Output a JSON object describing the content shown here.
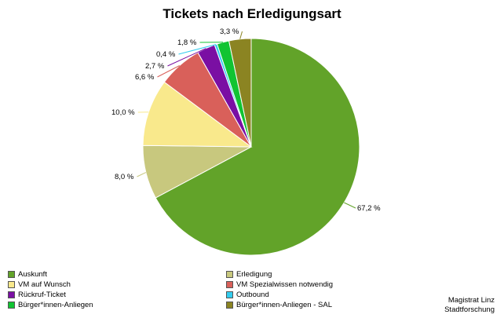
{
  "chart_data": {
    "type": "pie",
    "title": "Tickets nach Erledigungsart",
    "start_angle_deg": 0,
    "direction": "clockwise",
    "legend_placement": "bottom",
    "slices": [
      {
        "name": "Auskunft",
        "value": 67.2,
        "label": "67,2 %",
        "color": "#62a329"
      },
      {
        "name": "Erledigung",
        "value": 8.0,
        "label": "8,0 %",
        "color": "#c8c87e"
      },
      {
        "name": "VM auf Wunsch",
        "value": 10.0,
        "label": "10,0 %",
        "color": "#f9e98c"
      },
      {
        "name": "VM Spezialwissen notwendig",
        "value": 6.6,
        "label": "6,6 %",
        "color": "#d9605a"
      },
      {
        "name": "Rückruf-Ticket",
        "value": 2.7,
        "label": "2,7 %",
        "color": "#7a0fa3"
      },
      {
        "name": "Outbound",
        "value": 0.4,
        "label": "0,4 %",
        "color": "#33ccee"
      },
      {
        "name": "Bürger*innen-Anliegen",
        "value": 1.8,
        "label": "1,8 %",
        "color": "#11c432"
      },
      {
        "name": "Bürger*innen-Anliegen - SAL",
        "value": 3.3,
        "label": "3,3 %",
        "color": "#8b8422"
      }
    ]
  },
  "legend": {
    "items": [
      {
        "label": "Auskunft",
        "color": "#62a329"
      },
      {
        "label": "Erledigung",
        "color": "#c8c87e"
      },
      {
        "label": "VM auf Wunsch",
        "color": "#f9e98c"
      },
      {
        "label": "VM Spezialwissen notwendig",
        "color": "#d9605a"
      },
      {
        "label": "Rückruf-Ticket",
        "color": "#7a0fa3"
      },
      {
        "label": "Outbound",
        "color": "#33ccee"
      },
      {
        "label": "Bürger*innen-Anliegen",
        "color": "#11c432"
      },
      {
        "label": "Bürger*innen-Anliegen - SAL",
        "color": "#8b8422"
      }
    ]
  },
  "source": {
    "line1": "Magistrat Linz",
    "line2": "Stadtforschung"
  }
}
